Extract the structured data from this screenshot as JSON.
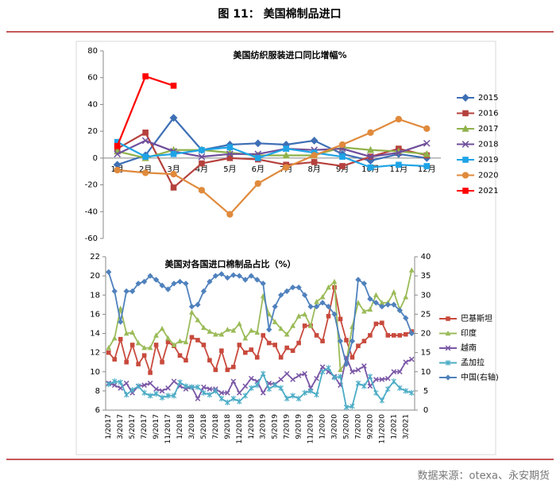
{
  "title": "图 11： 美国棉制品进口",
  "source": "数据来源：otexa、永安期货",
  "chart_data": [
    {
      "type": "line",
      "title": "美国纺织服装进口同比增幅%",
      "categories": [
        "1月",
        "2月",
        "3月",
        "4月",
        "5月",
        "6月",
        "7月",
        "8月",
        "9月",
        "10月",
        "11月",
        "12月"
      ],
      "ylim": [
        -60,
        80
      ],
      "yticks": [
        -60,
        -40,
        -20,
        0,
        20,
        40,
        60,
        80
      ],
      "legend": "right",
      "series": [
        {
          "name": "2015",
          "color": "#3e6fb5",
          "marker": "diamond",
          "values": [
            -5,
            2,
            30,
            6,
            10,
            11,
            10,
            13,
            3,
            -2,
            3,
            0
          ]
        },
        {
          "name": "2016",
          "color": "#b5413d",
          "marker": "square",
          "values": [
            7,
            19,
            -22,
            -4,
            0,
            -1,
            -5,
            -3,
            -6,
            1,
            7,
            2
          ]
        },
        {
          "name": "2017",
          "color": "#8fb24a",
          "marker": "triangle",
          "values": [
            5,
            0,
            6,
            6,
            4,
            2,
            2,
            2,
            8,
            6,
            5,
            3
          ]
        },
        {
          "name": "2018",
          "color": "#6f4e9b",
          "marker": "x",
          "values": [
            3,
            13,
            5,
            1,
            3,
            3,
            7,
            6,
            7,
            1,
            4,
            11
          ]
        },
        {
          "name": "2019",
          "color": "#1ea4e6",
          "marker": "square",
          "values": [
            12,
            1,
            3,
            6,
            8,
            0,
            7,
            4,
            1,
            -7,
            -5,
            -6
          ]
        },
        {
          "name": "2020",
          "color": "#e08a3c",
          "marker": "circle",
          "values": [
            -9,
            -11,
            -12,
            -24,
            -42,
            -19,
            -7,
            2,
            10,
            19,
            29,
            22
          ]
        },
        {
          "name": "2021",
          "color": "#ff0000",
          "marker": "square",
          "values": [
            9,
            61,
            54,
            null,
            null,
            null,
            null,
            null,
            null,
            null,
            null,
            null
          ]
        }
      ]
    },
    {
      "type": "line",
      "title": "美国对各国进口棉制品占比（%）",
      "categories": [
        "1/2017",
        null,
        "3/2017",
        null,
        "5/2017",
        null,
        "7/2017",
        null,
        "9/2017",
        null,
        "11/2017",
        null,
        "1/2018",
        null,
        "3/2018",
        null,
        "5/2018",
        null,
        "7/2018",
        null,
        "9/2018",
        null,
        "11/2018",
        null,
        "1/2019",
        null,
        "3/2019",
        null,
        "5/2019",
        null,
        "7/2019",
        null,
        "9/2019",
        null,
        "11/2019",
        null,
        "1/2020",
        null,
        "3/2020",
        null,
        "5/2020",
        null,
        "7/2020",
        null,
        "9/2020",
        null,
        "11/2020",
        null,
        "1/2021",
        null,
        "3/2021",
        null
      ],
      "ylim": [
        6,
        22
      ],
      "yticks": [
        6,
        8,
        10,
        12,
        14,
        16,
        18,
        20,
        22
      ],
      "y2lim": [
        0,
        40
      ],
      "y2ticks": [
        0,
        5,
        10,
        15,
        20,
        25,
        30,
        35,
        40
      ],
      "legend": "right",
      "series": [
        {
          "name": "巴基斯坦",
          "color": "#c84a3d",
          "marker": "square",
          "values": [
            12,
            11.3,
            13.4,
            11,
            12.8,
            10.8,
            11.7,
            9.9,
            12.8,
            11,
            13.1,
            12.7,
            11.7,
            11.2,
            13.6,
            13.3,
            12.8,
            11.2,
            10.2,
            12.2,
            10.2,
            10.5,
            12.8,
            12,
            12.3,
            11.5,
            13.8,
            13,
            12.8,
            11.5,
            12.5,
            12.2,
            13,
            14.8,
            14.8,
            13.8,
            13.2,
            15.8,
            18.8,
            15.5,
            13.3,
            11.5,
            12.7,
            13.2,
            13.8,
            15,
            15.1,
            13.8,
            13.8,
            13.8,
            13.9,
            14.2
          ]
        },
        {
          "name": "印度",
          "color": "#9bbb59",
          "marker": "triangle",
          "values": [
            12.5,
            13.5,
            16.6,
            14,
            14.1,
            13,
            12.5,
            12.5,
            13.8,
            14.5,
            13.5,
            12.8,
            13.2,
            13.1,
            16.2,
            15.4,
            14.6,
            14.2,
            13.9,
            13.9,
            14.4,
            14.3,
            15,
            13.5,
            14.3,
            14.1,
            17.9,
            16,
            15.2,
            14.5,
            13.9,
            14.8,
            15.8,
            16,
            14.8,
            17.3,
            17.8,
            18.8,
            19.4,
            10.2,
            11,
            14.7,
            17.2,
            16.3,
            16.5,
            18,
            17.2,
            17.2,
            18.3,
            16.5,
            17.8,
            20.6
          ]
        },
        {
          "name": "越南",
          "color": "#7a57a6",
          "marker": "x",
          "values": [
            8.8,
            8.6,
            8.3,
            8.8,
            7.8,
            8.5,
            8.6,
            8.8,
            8.2,
            8,
            8.3,
            9,
            8.5,
            8.2,
            8.4,
            7.2,
            8.4,
            8.2,
            8.2,
            7.8,
            7.8,
            9,
            7.8,
            8.5,
            9.3,
            9,
            7.8,
            8.8,
            8.7,
            9.2,
            9.8,
            9.2,
            9.6,
            9.8,
            8.3,
            9.3,
            10.5,
            10,
            9.5,
            8.6,
            11.5,
            10,
            10.2,
            10.6,
            8.5,
            9.2,
            9.2,
            9.3,
            10,
            10,
            11,
            11.3
          ]
        },
        {
          "name": "孟加拉",
          "color": "#4bacc6",
          "marker": "star",
          "values": [
            8.7,
            9,
            8.9,
            7.6,
            8.1,
            8.5,
            7.8,
            7.5,
            7.7,
            7.3,
            7.5,
            7.5,
            8.9,
            8.5,
            8.4,
            8.4,
            7.8,
            7.6,
            8,
            7.2,
            6.8,
            7.2,
            6.9,
            7.5,
            8.3,
            8.6,
            9.8,
            8.2,
            8.6,
            8.3,
            7.2,
            7.5,
            7.2,
            7.8,
            8,
            7.6,
            10,
            10.4,
            9.4,
            9.5,
            6.3,
            6.4,
            8.8,
            8.5,
            9.5,
            7.8,
            7,
            8.2,
            9,
            8.3,
            8,
            7.8
          ]
        },
        {
          "name": "中国(右轴)",
          "color": "#4f81bd",
          "marker": "diamond",
          "axis": "y2",
          "values": [
            36,
            31,
            23,
            31,
            31,
            33,
            33.5,
            35,
            34,
            32.5,
            31.5,
            33,
            33.5,
            33,
            27,
            27.5,
            31,
            33.5,
            35,
            35.5,
            34.5,
            35.2,
            35,
            34,
            35,
            34,
            33,
            21,
            27,
            30,
            31,
            32,
            32,
            30,
            27,
            27,
            28,
            27,
            25,
            18,
            12,
            18,
            34,
            33,
            29,
            28,
            27,
            27.5,
            27.5,
            26,
            24,
            20
          ]
        }
      ]
    }
  ]
}
